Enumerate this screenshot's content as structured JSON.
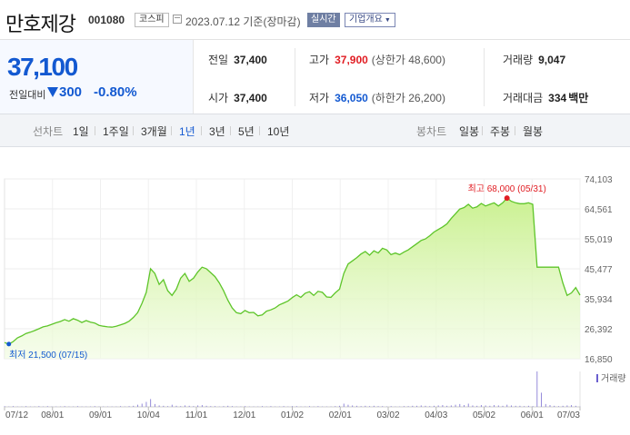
{
  "header": {
    "stock_name": "만호제강",
    "stock_code": "001080",
    "market": "코스피",
    "date": "2023.07.12 기준(장마감)",
    "realtime_label": "실시간",
    "overview_label": "기업개요",
    "calendar_icon": "calendar-icon",
    "overview_caret_icon": "caret-down-icon"
  },
  "price": {
    "current": "37,100",
    "change_label": "전일대비",
    "change_value": "300",
    "change_pct": "-0.80%",
    "direction_icon": "down-triangle-icon",
    "color": "#1359d1"
  },
  "stats": {
    "prev_close_label": "전일",
    "prev_close": "37,400",
    "open_label": "시가",
    "open": "37,400",
    "high_label": "고가",
    "high": "37,900",
    "upper_limit": "(상한가 48,600)",
    "low_label": "저가",
    "low": "36,050",
    "lower_limit": "(하한가 26,200)",
    "volume_label": "거래량",
    "volume": "9,047",
    "amount_label": "거래대금",
    "amount": "334",
    "amount_unit": "백만",
    "up_color": "#e11d23",
    "down_color": "#1359d1"
  },
  "tabs": {
    "line_chart_label": "선차트",
    "line_periods": [
      "1일",
      "1주일",
      "3개월",
      "1년",
      "3년",
      "5년",
      "10년"
    ],
    "active_period": "1년",
    "candle_chart_label": "봉차트",
    "candle_periods": [
      "일봉",
      "주봉",
      "월봉"
    ]
  },
  "chart_data": {
    "type": "area",
    "x_tick_labels": [
      "07/12",
      "08/01",
      "09/01",
      "10/04",
      "11/01",
      "12/01",
      "01/02",
      "02/01",
      "03/02",
      "04/03",
      "05/02",
      "06/01",
      "07/03"
    ],
    "y_tick_labels": [
      "74,103",
      "64,561",
      "55,019",
      "45,477",
      "35,934",
      "26,392",
      "16,850"
    ],
    "ylim": [
      16850,
      74103
    ],
    "series": [
      {
        "values": [
          22000,
          21500,
          22300,
          23500,
          24100,
          24900,
          25300,
          25800,
          26400,
          27000,
          27300,
          27800,
          28300,
          28700,
          29300,
          28800,
          29600,
          29100,
          28400,
          29000,
          28500,
          28200,
          27500,
          27200,
          27000,
          26900,
          27200,
          27600,
          28100,
          28800,
          30000,
          31500,
          34500,
          38000,
          45500,
          44000,
          40500,
          42000,
          38500,
          37000,
          39000,
          42500,
          44000,
          41500,
          42500,
          44500,
          46000,
          45500,
          44300,
          43000,
          41000,
          38500,
          35500,
          33000,
          31500,
          31200,
          32200,
          31500,
          31600,
          30500,
          30800,
          32000,
          32400,
          33000,
          34000,
          34600,
          35200,
          36300,
          37200,
          36400,
          37700,
          38200,
          37000,
          38300,
          38000,
          36500,
          36400,
          37800,
          39000,
          44000,
          47000,
          48000,
          49000,
          50200,
          51000,
          49800,
          51200,
          50500,
          52000,
          51500,
          50000,
          50500,
          50000,
          50800,
          51500,
          52500,
          53500,
          54500,
          55000,
          56000,
          57200,
          58000,
          58800,
          59800,
          61500,
          63000,
          64500,
          65000,
          66000,
          64800,
          65200,
          66300,
          65500,
          66000,
          66500,
          65500,
          66500,
          68000,
          67000,
          66500,
          66200,
          66200,
          66500,
          66000,
          46000,
          46000,
          46000,
          46000,
          46000,
          46000,
          41000,
          37000,
          37800,
          39500,
          37100
        ]
      }
    ],
    "max_label": "최고 68,000 (05/31)",
    "min_label": "최저 21,500 (07/15)",
    "max_index": 117,
    "min_index": 1,
    "volume_legend": "거래량",
    "volume_values": [
      2,
      1,
      2,
      1,
      1,
      2,
      1,
      1,
      2,
      1,
      2,
      1,
      1,
      1,
      2,
      1,
      1,
      2,
      1,
      1,
      1,
      2,
      1,
      1,
      1,
      1,
      1,
      2,
      1,
      2,
      3,
      6,
      9,
      14,
      22,
      8,
      4,
      3,
      2,
      6,
      3,
      2,
      4,
      3,
      2,
      4,
      5,
      3,
      2,
      2,
      1,
      2,
      3,
      2,
      1,
      1,
      2,
      1,
      1,
      1,
      2,
      1,
      2,
      1,
      1,
      2,
      1,
      2,
      2,
      1,
      1,
      2,
      1,
      2,
      1,
      1,
      1,
      2,
      3,
      9,
      6,
      4,
      3,
      2,
      3,
      2,
      3,
      2,
      2,
      1,
      2,
      1,
      1,
      2,
      2,
      3,
      3,
      4,
      3,
      2,
      3,
      4,
      5,
      3,
      4,
      6,
      8,
      5,
      9,
      4,
      3,
      5,
      4,
      3,
      5,
      4,
      3,
      6,
      4,
      3,
      3,
      2,
      3,
      2,
      100,
      40,
      8,
      5,
      3,
      2,
      3,
      4,
      5,
      3,
      1
    ],
    "line_color": "#5ec52a",
    "fill_top_color": "#c8f08c",
    "max_marker_color": "#e11d23",
    "min_marker_color": "#1359d1",
    "grid": true
  }
}
